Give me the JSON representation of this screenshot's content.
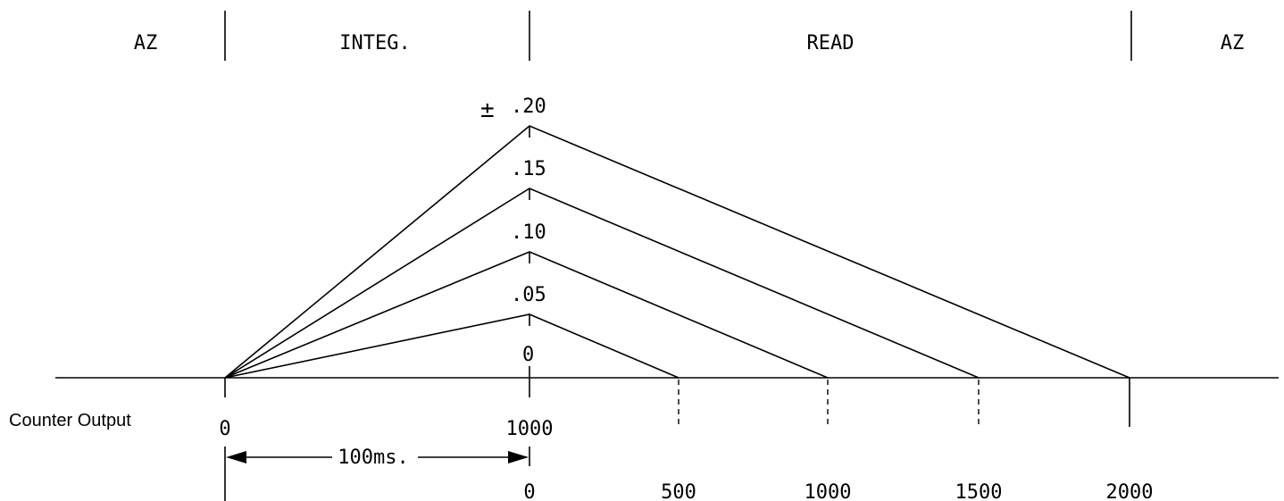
{
  "phases": {
    "az_left": "AZ",
    "integ": "INTEG.",
    "read": "READ",
    "az_right": "AZ"
  },
  "peak_labels": {
    "sign": "±",
    "v20": ".20",
    "v15": ".15",
    "v10": ".10",
    "v05": ".05",
    "v0": "0"
  },
  "counter": {
    "label": "Counter Output",
    "start": "0",
    "integ_end": "1000"
  },
  "timing": {
    "label": "100ms."
  },
  "read_counts": [
    "0",
    "500",
    "1000",
    "1500",
    "2000"
  ]
}
